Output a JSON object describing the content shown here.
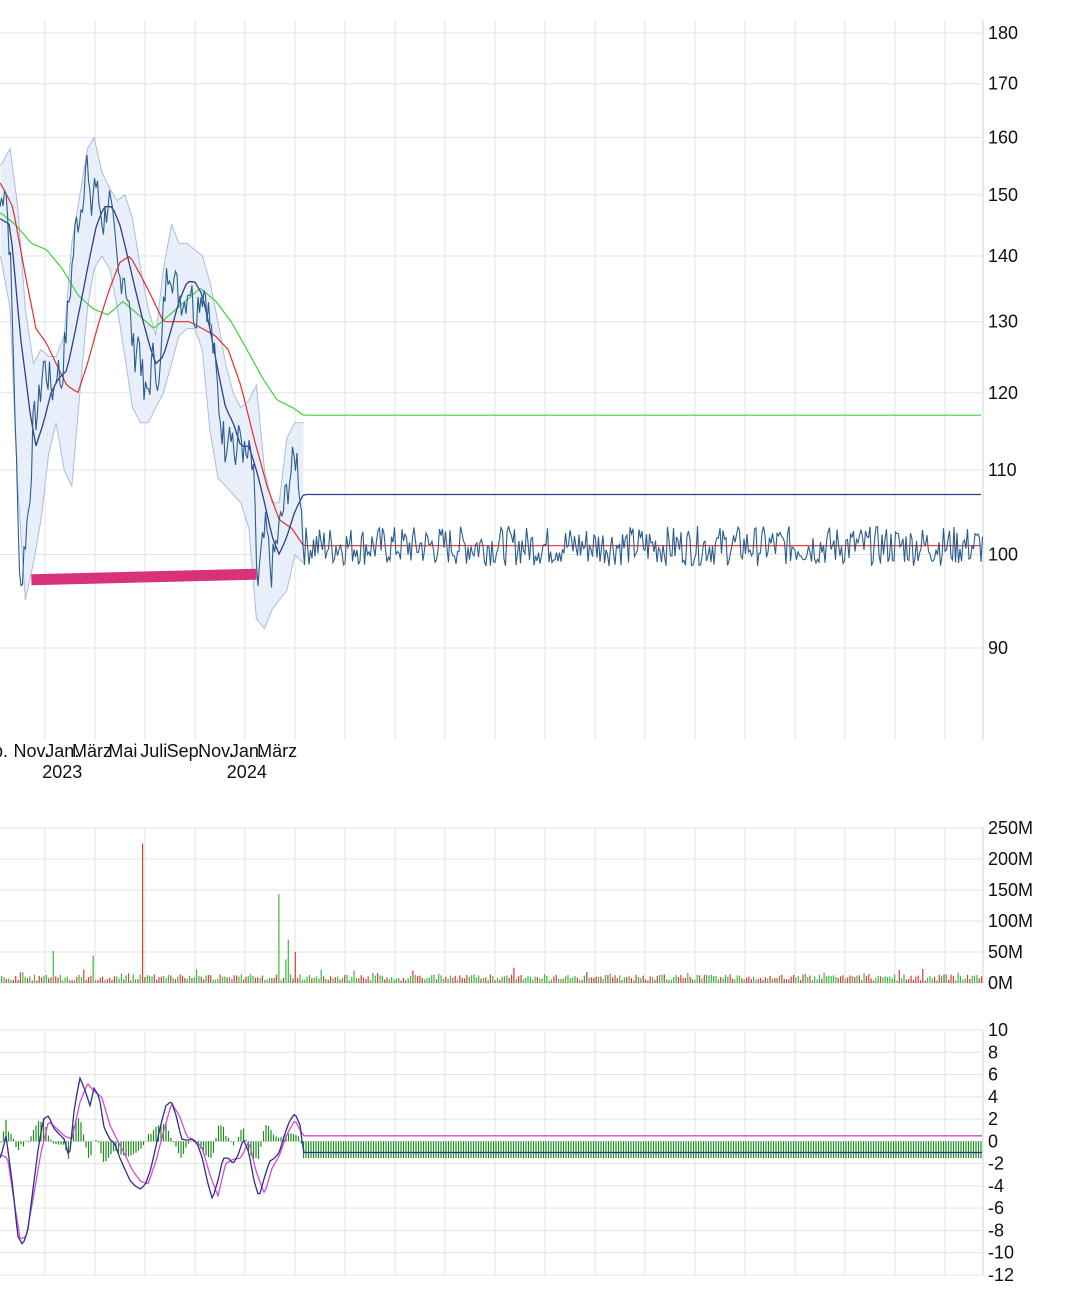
{
  "colors": {
    "price": "#2b5d8c",
    "band_fill": "#e8effa",
    "band_edge": "#a9bde0",
    "sma_fast": "#2c3f8e",
    "sma_mid": "#e0302c",
    "sma_slow": "#3fd13f",
    "support": "#d8327a",
    "vol_up": "#3cb83c",
    "vol_down": "#d04040",
    "macd_line": "#2c2f8e",
    "signal_line": "#d64bd6",
    "histogram": "#1e8c1e",
    "grid": "#e3e3e3"
  },
  "chart_data": [
    {
      "type": "line",
      "panel": "price",
      "yticks": [
        90,
        100,
        110,
        120,
        130,
        140,
        150,
        160,
        170,
        180
      ],
      "y_scale": "log",
      "ylim": [
        80,
        185
      ],
      "x_labels": [
        {
          "text": "p.",
          "year": "",
          "month": "2022-09"
        },
        {
          "text": "Nov.",
          "year": "",
          "month": "2022-11"
        },
        {
          "text": "Jan.",
          "year": "2023",
          "month": "2023-01"
        },
        {
          "text": "März",
          "year": "",
          "month": "2023-03"
        },
        {
          "text": "Mai",
          "year": "",
          "month": "2023-05"
        },
        {
          "text": "Juli",
          "year": "",
          "month": "2023-07"
        },
        {
          "text": "Sep.",
          "year": "",
          "month": "2023-09"
        },
        {
          "text": "Nov.",
          "year": "",
          "month": "2023-11"
        },
        {
          "text": "Jan.",
          "year": "2024",
          "month": "2024-01"
        },
        {
          "text": "März",
          "year": "",
          "month": "2024-03"
        }
      ],
      "price": {
        "dates": [
          "2022-09-01",
          "2022-09-10",
          "2022-09-20",
          "2022-09-28",
          "2022-10-05",
          "2022-10-12",
          "2022-10-20",
          "2022-10-28",
          "2022-11-05",
          "2022-11-15",
          "2022-11-25",
          "2022-12-05",
          "2022-12-15",
          "2022-12-22",
          "2022-12-30",
          "2023-01-08",
          "2023-01-18",
          "2023-01-28",
          "2023-02-08",
          "2023-02-18",
          "2023-02-26",
          "2023-03-06",
          "2023-03-14",
          "2023-03-24",
          "2023-04-03",
          "2023-04-13",
          "2023-04-23",
          "2023-05-03",
          "2023-05-13",
          "2023-05-23",
          "2023-06-02",
          "2023-06-12",
          "2023-06-22",
          "2023-07-02",
          "2023-07-12",
          "2023-07-22",
          "2023-08-01",
          "2023-08-11",
          "2023-08-21",
          "2023-08-31",
          "2023-09-10",
          "2023-09-20",
          "2023-09-30",
          "2023-10-10",
          "2023-10-20",
          "2023-10-30",
          "2023-11-09",
          "2023-11-19",
          "2023-11-29",
          "2023-12-09",
          "2023-12-19",
          "2023-12-29",
          "2024-01-08",
          "2024-01-15",
          "2024-01-22",
          "2024-01-30",
          "2024-02-08",
          "2024-02-18",
          "2024-02-28",
          "2024-03-09",
          "2024-03-19",
          "2024-03-29",
          "2024-04-08",
          "2024-04-16",
          "2024-04-22"
        ],
        "values": [
          148,
          153,
          140,
          122,
          104,
          96,
          102,
          106,
          116,
          118,
          124,
          122,
          120,
          124,
          121,
          128,
          136,
          145,
          148,
          157,
          146,
          153,
          149,
          145,
          150,
          143,
          136,
          138,
          132,
          125,
          128,
          119,
          121,
          126,
          120,
          134,
          139,
          136,
          134,
          133,
          136,
          131,
          134,
          135,
          130,
          124,
          117,
          113,
          117,
          111,
          115,
          111,
          112,
          108,
          96,
          100,
          103,
          98,
          101,
          104,
          107,
          110,
          112,
          107,
          101
        ]
      },
      "sma_fast": {
        "dates": [
          "2022-09-01",
          "2022-09-20",
          "2022-10-10",
          "2022-10-30",
          "2022-11-10",
          "2022-11-25",
          "2022-12-10",
          "2022-12-25",
          "2023-01-10",
          "2023-01-25",
          "2023-02-10",
          "2023-02-25",
          "2023-03-10",
          "2023-03-25",
          "2023-04-10",
          "2023-04-25",
          "2023-05-10",
          "2023-05-25",
          "2023-06-10",
          "2023-06-25",
          "2023-07-05",
          "2023-07-20",
          "2023-08-05",
          "2023-08-20",
          "2023-09-05",
          "2023-09-20",
          "2023-10-05",
          "2023-10-20",
          "2023-11-05",
          "2023-11-20",
          "2023-12-05",
          "2023-12-20",
          "2024-01-05",
          "2024-01-20",
          "2024-02-05",
          "2024-02-20",
          "2024-03-05",
          "2024-03-20",
          "2024-04-05",
          "2024-04-22"
        ],
        "values": [
          146,
          145,
          128,
          117,
          113,
          116,
          120,
          122,
          123,
          128,
          134,
          140,
          145,
          148,
          148,
          145,
          140,
          135,
          130,
          126,
          124,
          125,
          129,
          133,
          136,
          136,
          134,
          129,
          123,
          118,
          116,
          113,
          113,
          110,
          106,
          102,
          100,
          102,
          105,
          107
        ]
      },
      "sma_mid": {
        "dates": [
          "2022-09-01",
          "2022-09-25",
          "2022-10-20",
          "2022-11-10",
          "2022-11-30",
          "2022-12-20",
          "2023-01-10",
          "2023-02-01",
          "2023-02-20",
          "2023-03-15",
          "2023-04-05",
          "2023-04-25",
          "2023-05-15",
          "2023-06-05",
          "2023-06-25",
          "2023-07-20",
          "2023-08-15",
          "2023-09-10",
          "2023-10-05",
          "2023-10-30",
          "2023-11-25",
          "2023-12-20",
          "2024-01-15",
          "2024-02-10",
          "2024-03-05",
          "2024-03-30",
          "2024-04-22"
        ],
        "values": [
          152,
          148,
          137,
          129,
          127,
          124,
          121,
          120,
          124,
          130,
          135,
          139,
          140,
          137,
          134,
          130,
          130,
          130,
          129,
          128,
          126,
          121,
          114,
          108,
          104,
          103,
          101
        ]
      },
      "sma_slow": {
        "dates": [
          "2022-09-01",
          "2022-10-01",
          "2022-11-01",
          "2022-12-01",
          "2023-01-01",
          "2023-02-01",
          "2023-03-01",
          "2023-04-01",
          "2023-05-01",
          "2023-06-01",
          "2023-07-01",
          "2023-08-01",
          "2023-09-01",
          "2023-10-01",
          "2023-11-01",
          "2023-12-01",
          "2024-01-01",
          "2024-02-01",
          "2024-03-01",
          "2024-04-01",
          "2024-04-22"
        ],
        "values": [
          147,
          145,
          142,
          141,
          138,
          134,
          132,
          131,
          133,
          131,
          129,
          131,
          133,
          135,
          133,
          130,
          126,
          122,
          119,
          118,
          117
        ]
      },
      "band": {
        "dates": [
          "2022-09-01",
          "2022-09-20",
          "2022-10-05",
          "2022-10-20",
          "2022-11-05",
          "2022-11-20",
          "2022-12-05",
          "2022-12-20",
          "2023-01-05",
          "2023-01-20",
          "2023-02-05",
          "2023-02-20",
          "2023-03-05",
          "2023-03-20",
          "2023-04-05",
          "2023-04-20",
          "2023-05-05",
          "2023-05-20",
          "2023-06-05",
          "2023-06-20",
          "2023-07-05",
          "2023-07-20",
          "2023-08-05",
          "2023-08-20",
          "2023-09-05",
          "2023-09-20",
          "2023-10-05",
          "2023-10-20",
          "2023-11-05",
          "2023-11-20",
          "2023-12-05",
          "2023-12-20",
          "2024-01-05",
          "2024-01-20",
          "2024-02-05",
          "2024-02-20",
          "2024-03-05",
          "2024-03-20",
          "2024-04-05",
          "2024-04-22"
        ],
        "upper": [
          155,
          158,
          148,
          132,
          124,
          126,
          125,
          125,
          128,
          142,
          150,
          158,
          160,
          154,
          151,
          149,
          150,
          146,
          138,
          132,
          128,
          138,
          145,
          142,
          142,
          141,
          140,
          136,
          130,
          124,
          120,
          118,
          119,
          121,
          110,
          106,
          106,
          114,
          116,
          116
        ],
        "lower": [
          140,
          132,
          108,
          95,
          99,
          104,
          112,
          116,
          110,
          108,
          120,
          132,
          138,
          140,
          138,
          132,
          125,
          118,
          116,
          116,
          118,
          120,
          124,
          128,
          129,
          129,
          126,
          115,
          109,
          108,
          107,
          106,
          103,
          93,
          92,
          94,
          95,
          96,
          100,
          99
        ]
      },
      "support": {
        "from": "2022-11-01",
        "to": "2024-01-20",
        "y_start": 97.2,
        "y_end": 97.8
      }
    },
    {
      "type": "bar",
      "panel": "volume",
      "yticks": [
        "0M",
        "50M",
        "100M",
        "150M",
        "200M",
        "250M"
      ],
      "ytick_values": [
        0,
        50,
        100,
        150,
        200,
        250
      ],
      "ylim": [
        0,
        250
      ],
      "typical_low": 4,
      "typical_high": 14,
      "spikes": [
        {
          "date": "2023-06-08",
          "value": 225,
          "dir": "down"
        },
        {
          "date": "2024-03-04",
          "value": 143,
          "dir": "up"
        },
        {
          "date": "2024-03-22",
          "value": 70,
          "dir": "up"
        },
        {
          "date": "2024-04-03",
          "value": 50,
          "dir": "down"
        },
        {
          "date": "2023-03-01",
          "value": 44,
          "dir": "up"
        },
        {
          "date": "2022-12-15",
          "value": 52,
          "dir": "up"
        },
        {
          "date": "2024-03-17",
          "value": 38,
          "dir": "up"
        }
      ]
    },
    {
      "type": "line",
      "panel": "macd",
      "yticks": [
        10,
        8,
        6,
        4,
        2,
        0,
        -2,
        -4,
        -6,
        -8,
        -10,
        -12
      ],
      "ylim": [
        -12,
        10
      ],
      "macd": {
        "dates": [
          "2022-09-01",
          "2022-09-12",
          "2022-09-25",
          "2022-10-05",
          "2022-10-15",
          "2022-10-25",
          "2022-11-05",
          "2022-11-15",
          "2022-11-25",
          "2022-12-05",
          "2022-12-15",
          "2022-12-25",
          "2023-01-05",
          "2023-01-15",
          "2023-01-25",
          "2023-02-05",
          "2023-02-15",
          "2023-02-25",
          "2023-03-05",
          "2023-03-15",
          "2023-03-25",
          "2023-04-05",
          "2023-04-15",
          "2023-04-25",
          "2023-05-05",
          "2023-05-15",
          "2023-05-25",
          "2023-06-05",
          "2023-06-15",
          "2023-06-25",
          "2023-07-05",
          "2023-07-15",
          "2023-07-25",
          "2023-08-05",
          "2023-08-15",
          "2023-08-25",
          "2023-09-05",
          "2023-09-15",
          "2023-09-25",
          "2023-10-05",
          "2023-10-15",
          "2023-10-25",
          "2023-11-05",
          "2023-11-15",
          "2023-11-25",
          "2023-12-05",
          "2023-12-15",
          "2023-12-25",
          "2024-01-05",
          "2024-01-15",
          "2024-01-25",
          "2024-02-05",
          "2024-02-15",
          "2024-02-25",
          "2024-03-05",
          "2024-03-15",
          "2024-03-25",
          "2024-04-05",
          "2024-04-15",
          "2024-04-22"
        ],
        "values": [
          -1.5,
          0.5,
          -4,
          -8.5,
          -9.3,
          -8,
          -4,
          -0.5,
          2,
          2.3,
          1.2,
          0.7,
          0.2,
          -1.5,
          3,
          5.7,
          4.6,
          3.2,
          4.8,
          4,
          1.2,
          0.2,
          -0.2,
          -1.5,
          -2.5,
          -3.5,
          -4,
          -4.3,
          -3.8,
          -2.5,
          -0.5,
          1.5,
          3.2,
          3.6,
          2.2,
          0.2,
          0.1,
          0.2,
          -0.2,
          -1.5,
          -3.6,
          -5.2,
          -3.5,
          -1.5,
          -1.5,
          -2.0,
          -1.2,
          0.2,
          -1.0,
          -3.5,
          -5,
          -3.2,
          -1.8,
          -1.5,
          -1.0,
          0.5,
          1.8,
          2.5,
          1.5,
          -1.0
        ]
      },
      "signal": {
        "dates": [
          "2022-09-01",
          "2022-09-15",
          "2022-09-30",
          "2022-10-10",
          "2022-10-22",
          "2022-11-05",
          "2022-11-20",
          "2022-12-05",
          "2022-12-20",
          "2023-01-05",
          "2023-01-20",
          "2023-02-05",
          "2023-02-20",
          "2023-03-05",
          "2023-03-20",
          "2023-04-05",
          "2023-04-20",
          "2023-05-05",
          "2023-05-20",
          "2023-06-05",
          "2023-06-20",
          "2023-07-05",
          "2023-07-20",
          "2023-08-05",
          "2023-08-20",
          "2023-09-05",
          "2023-09-20",
          "2023-10-05",
          "2023-10-20",
          "2023-11-05",
          "2023-11-20",
          "2023-12-05",
          "2023-12-20",
          "2024-01-05",
          "2024-01-20",
          "2024-02-05",
          "2024-02-20",
          "2024-03-05",
          "2024-03-20",
          "2024-04-05",
          "2024-04-22"
        ],
        "values": [
          -1.2,
          -1.5,
          -6,
          -8.8,
          -8.5,
          -5,
          -1,
          1.8,
          1.2,
          0.5,
          0.2,
          3.5,
          5.2,
          4.5,
          4.0,
          1.5,
          0.1,
          -1.2,
          -2.6,
          -3.6,
          -3.8,
          -1.8,
          0.8,
          3.4,
          2.4,
          0.4,
          0.1,
          -0.6,
          -3.0,
          -4.9,
          -2.0,
          -1.6,
          -1.5,
          0.0,
          -2.8,
          -4.7,
          -2.4,
          -1.3,
          0.6,
          1.9,
          0.5
        ]
      }
    }
  ]
}
